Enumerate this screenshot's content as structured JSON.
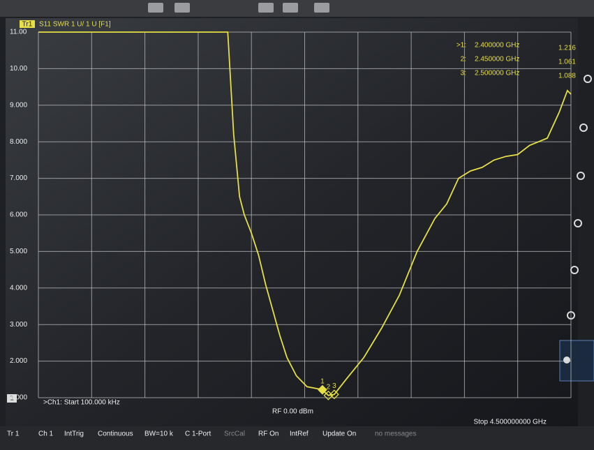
{
  "chart_data": {
    "type": "line",
    "trace_label": "Tr1",
    "title": "S11  SWR 1 U/ 1 U [F1]",
    "xlim": [
      0.0001,
      4.5
    ],
    "ylim": [
      1,
      11
    ],
    "yticks": [
      {
        "value": 11,
        "label": "11.00"
      },
      {
        "value": 10,
        "label": "10.00"
      },
      {
        "value": 9,
        "label": "9.000"
      },
      {
        "value": 8,
        "label": "8.000"
      },
      {
        "value": 7,
        "label": "7.000"
      },
      {
        "value": 6,
        "label": "6.000"
      },
      {
        "value": 5,
        "label": "5.000"
      },
      {
        "value": 4,
        "label": "4.000"
      },
      {
        "value": 3,
        "label": "3.000"
      },
      {
        "value": 2,
        "label": "2.000"
      },
      {
        "value": 1,
        "label": "1.000"
      }
    ],
    "grid": true,
    "series": [
      {
        "name": "S11",
        "color": "#e6df45",
        "x": [
          0.0001,
          1.6,
          1.65,
          1.7,
          1.74,
          1.8,
          1.86,
          1.92,
          1.98,
          2.04,
          2.1,
          2.18,
          2.27,
          2.35,
          2.4,
          2.45,
          2.5,
          2.6,
          2.75,
          2.9,
          3.05,
          3.2,
          3.35,
          3.45,
          3.55,
          3.65,
          3.75,
          3.85,
          3.95,
          4.05,
          4.15,
          4.3,
          4.4,
          4.47,
          4.5
        ],
        "values": [
          11,
          11,
          8.2,
          6.5,
          6.0,
          5.5,
          4.9,
          4.1,
          3.4,
          2.7,
          2.1,
          1.6,
          1.3,
          1.25,
          1.216,
          1.061,
          1.088,
          1.5,
          2.1,
          2.9,
          3.8,
          5.0,
          5.9,
          6.3,
          7.0,
          7.2,
          7.3,
          7.5,
          7.6,
          7.65,
          7.9,
          8.1,
          8.8,
          9.4,
          9.3
        ]
      }
    ],
    "markers": [
      {
        "name": "1",
        "table_label": ">1:",
        "x": 2.4,
        "x_label": "2.400000 GHz",
        "value": 1.216
      },
      {
        "name": "2",
        "table_label": "2:",
        "x": 2.45,
        "x_label": "2.450000 GHz",
        "value": 1.061
      },
      {
        "name": "3",
        "table_label": "3:",
        "x": 2.5,
        "x_label": "2.500000 GHz",
        "value": 1.088
      }
    ],
    "start_label": ">Ch1: Start 100.000 kHz",
    "power_label": "RF 0.00 dBm",
    "stop_label": "Stop 4.500000000 GHz",
    "channel_number": "1",
    "status_bar": [
      "Tr 1",
      "Ch 1",
      "IntTrig",
      "Continuous",
      "BW=10 k",
      "C 1-Port",
      "SrcCal",
      "RF On",
      "IntRef",
      "Update On",
      "no messages"
    ]
  }
}
